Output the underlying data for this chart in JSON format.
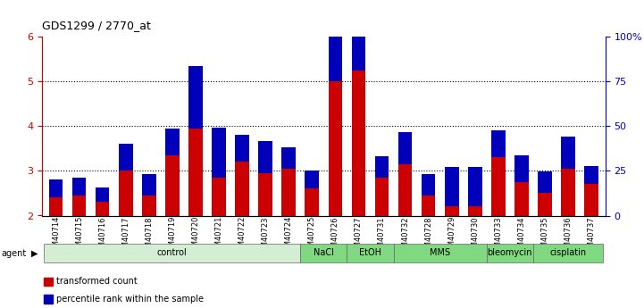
{
  "title": "GDS1299 / 2770_at",
  "samples": [
    "GSM40714",
    "GSM40715",
    "GSM40716",
    "GSM40717",
    "GSM40718",
    "GSM40719",
    "GSM40720",
    "GSM40721",
    "GSM40722",
    "GSM40723",
    "GSM40724",
    "GSM40725",
    "GSM40726",
    "GSM40727",
    "GSM40731",
    "GSM40732",
    "GSM40728",
    "GSM40729",
    "GSM40730",
    "GSM40733",
    "GSM40734",
    "GSM40735",
    "GSM40736",
    "GSM40737"
  ],
  "red_values": [
    2.4,
    2.45,
    2.3,
    3.0,
    2.45,
    3.35,
    3.95,
    2.85,
    3.2,
    2.95,
    3.05,
    2.6,
    5.0,
    5.25,
    2.85,
    3.15,
    2.45,
    2.2,
    2.2,
    3.3,
    2.75,
    2.5,
    3.05,
    2.7
  ],
  "blue_percentiles": [
    10,
    10,
    8,
    15,
    12,
    15,
    35,
    28,
    15,
    18,
    12,
    10,
    42,
    48,
    12,
    18,
    12,
    22,
    22,
    15,
    15,
    12,
    18,
    10
  ],
  "agents": [
    {
      "label": "control",
      "start": 0,
      "end": 11,
      "color": "#d4eed4"
    },
    {
      "label": "NaCl",
      "start": 11,
      "end": 13,
      "color": "#80d880"
    },
    {
      "label": "EtOH",
      "start": 13,
      "end": 15,
      "color": "#80d880"
    },
    {
      "label": "MMS",
      "start": 15,
      "end": 19,
      "color": "#80d880"
    },
    {
      "label": "bleomycin",
      "start": 19,
      "end": 21,
      "color": "#80d880"
    },
    {
      "label": "cisplatin",
      "start": 21,
      "end": 24,
      "color": "#80d880"
    }
  ],
  "ylim_left": [
    2,
    6
  ],
  "ylim_right": [
    0,
    100
  ],
  "yticks_left": [
    2,
    3,
    4,
    5,
    6
  ],
  "yticks_right": [
    0,
    25,
    50,
    75,
    100
  ],
  "ytick_labels_right": [
    "0",
    "25",
    "50",
    "75",
    "100%"
  ],
  "ylabel_left_color": "#cc0000",
  "ylabel_right_color": "#0000cc",
  "bar_color_red": "#cc0000",
  "bar_color_blue": "#0000bb",
  "background_color": "#ffffff",
  "legend_items": [
    {
      "label": "transformed count",
      "color": "#cc0000"
    },
    {
      "label": "percentile rank within the sample",
      "color": "#0000bb"
    }
  ]
}
